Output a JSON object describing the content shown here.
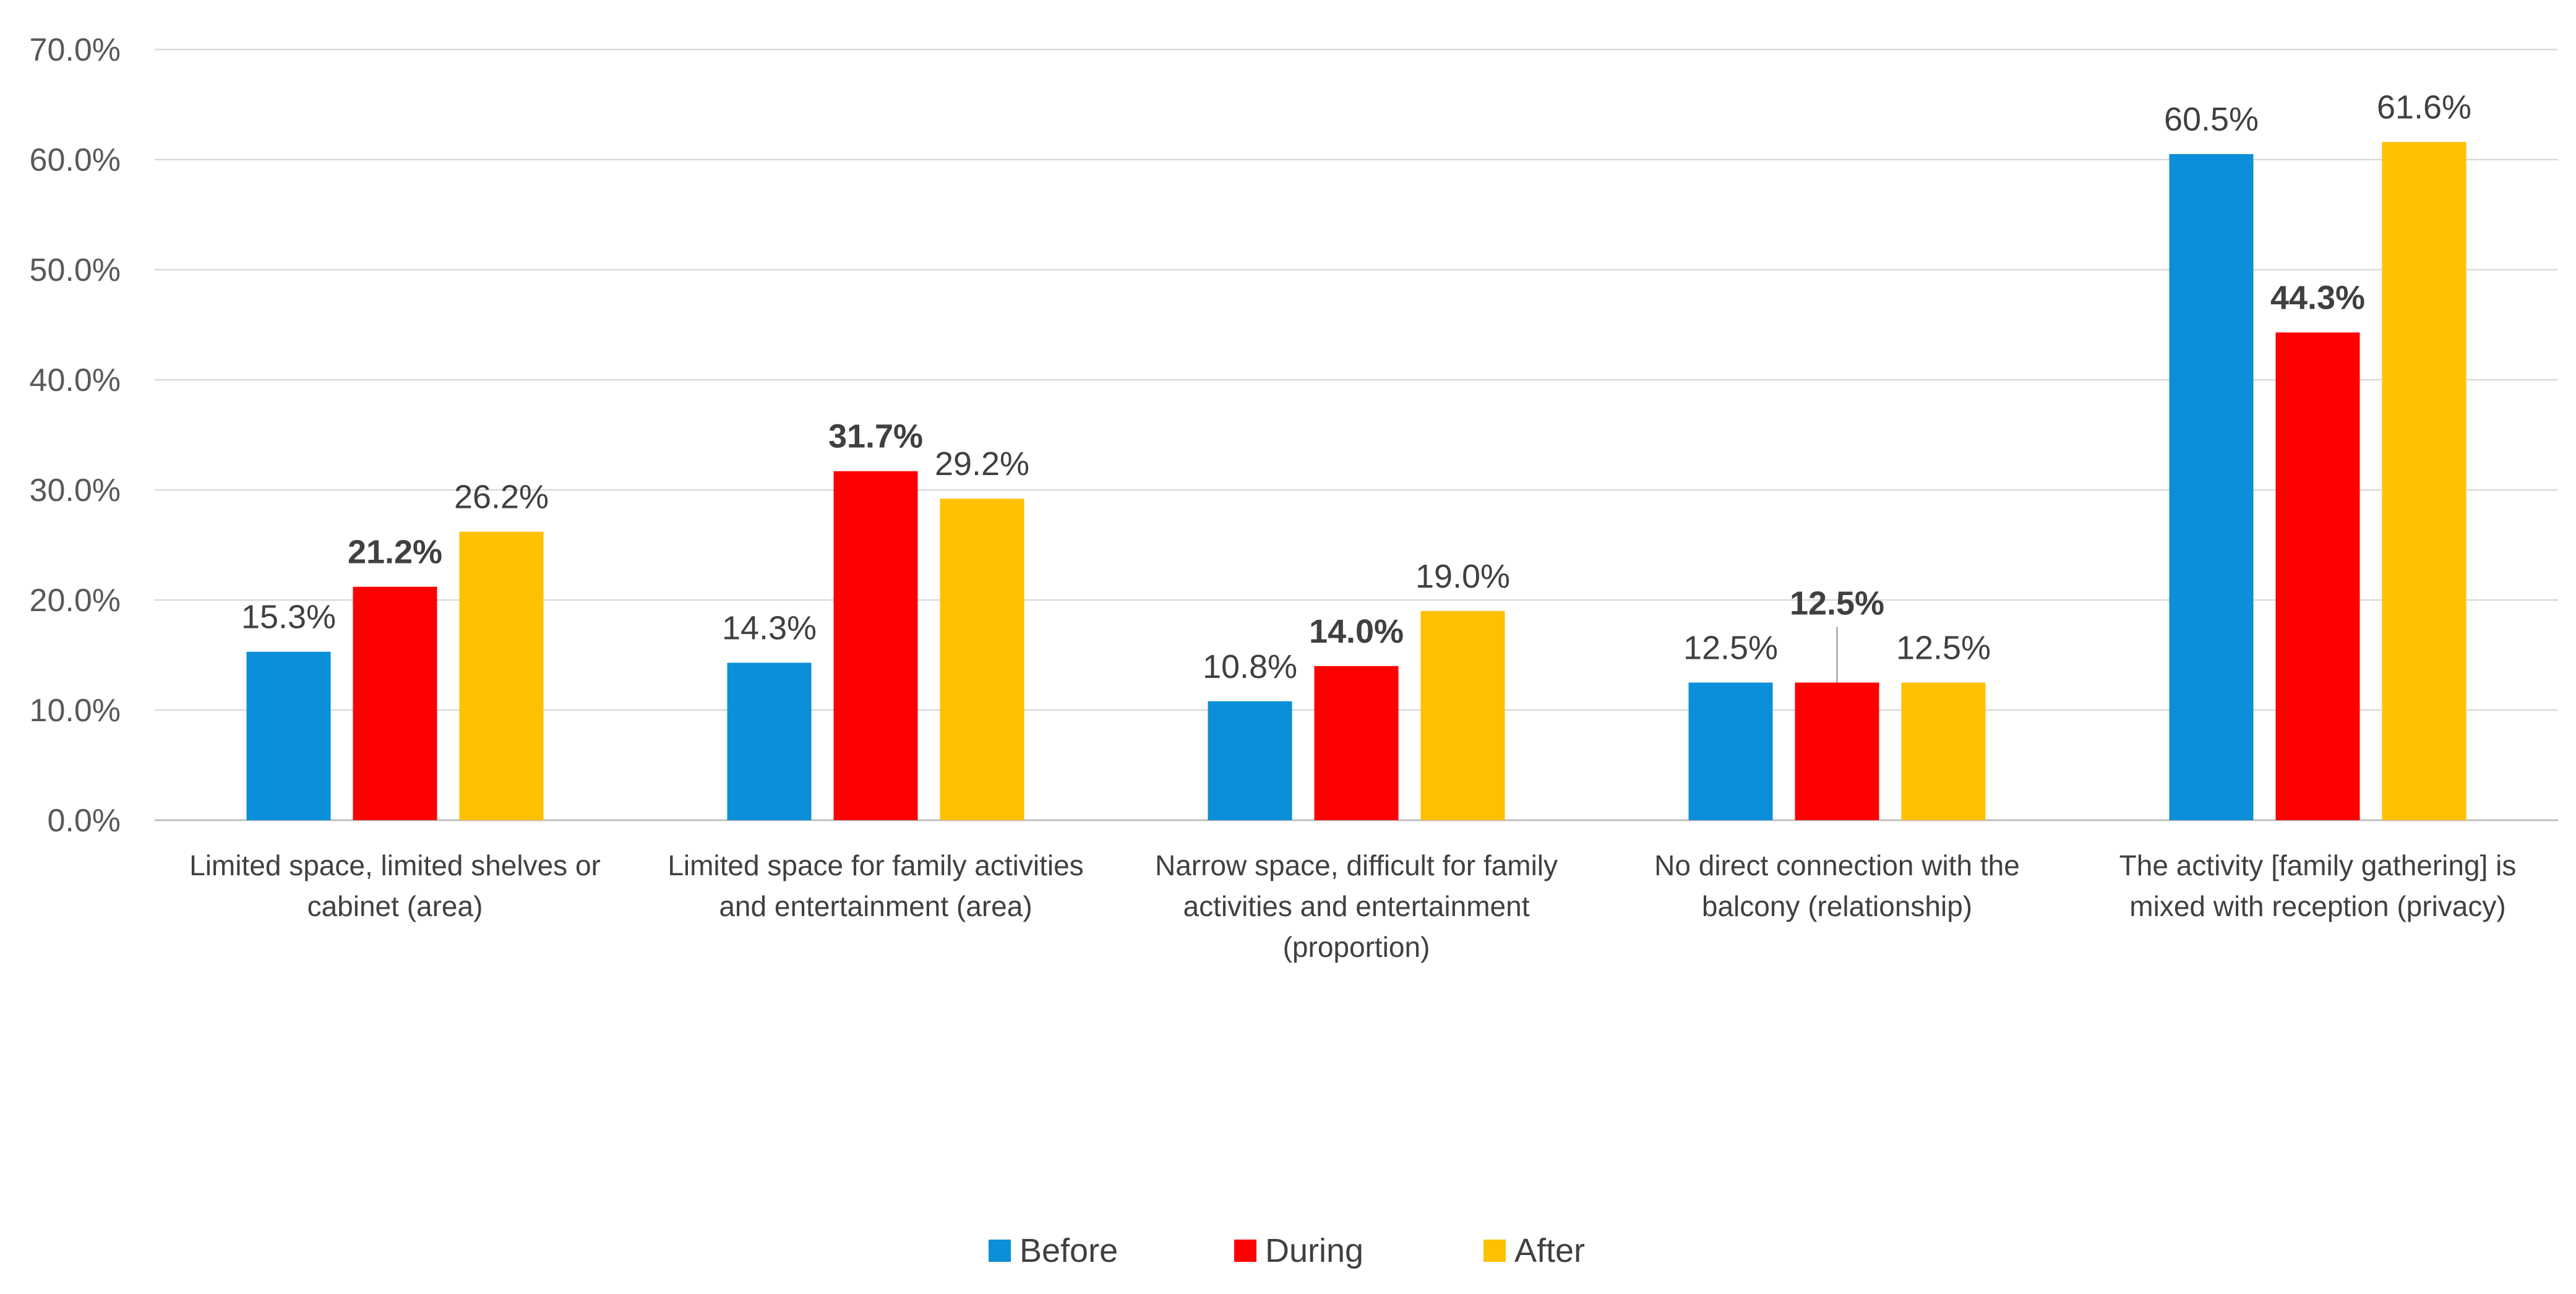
{
  "chart_data": {
    "type": "bar",
    "title": "",
    "xlabel": "",
    "ylabel": "",
    "ylim": [
      0,
      70
    ],
    "y_ticks": [
      "0.0%",
      "10.0%",
      "20.0%",
      "30.0%",
      "40.0%",
      "50.0%",
      "60.0%",
      "70.0%"
    ],
    "grid": true,
    "legend_position": "bottom-center",
    "categories": [
      [
        "Limited space, limited shelves or",
        "cabinet (area)"
      ],
      [
        "Limited space for family activities",
        "and entertainment (area)"
      ],
      [
        "Narrow space, difficult for family",
        "activities and entertainment",
        "(proportion)"
      ],
      [
        "No direct connection with the",
        "balcony (relationship)"
      ],
      [
        "The activity [family gathering] is",
        "mixed with reception (privacy)"
      ]
    ],
    "series": [
      {
        "name": "Before",
        "color": "#0a8fd8",
        "values": [
          15.3,
          14.3,
          10.8,
          12.5,
          60.5
        ],
        "labels": [
          "15.3%",
          "14.3%",
          "10.8%",
          "12.5%",
          "60.5%"
        ],
        "bold_labels": false
      },
      {
        "name": "During",
        "color": "#ff0000",
        "values": [
          21.2,
          31.7,
          14.0,
          12.5,
          44.3
        ],
        "labels": [
          "21.2%",
          "31.7%",
          "14.0%",
          "12.5%",
          "44.3%"
        ],
        "bold_labels": true
      },
      {
        "name": "After",
        "color": "#ffc000",
        "values": [
          26.2,
          29.2,
          19.0,
          12.5,
          61.6
        ],
        "labels": [
          "26.2%",
          "29.2%",
          "19.0%",
          "12.5%",
          "61.6%"
        ],
        "bold_labels": false
      }
    ]
  }
}
